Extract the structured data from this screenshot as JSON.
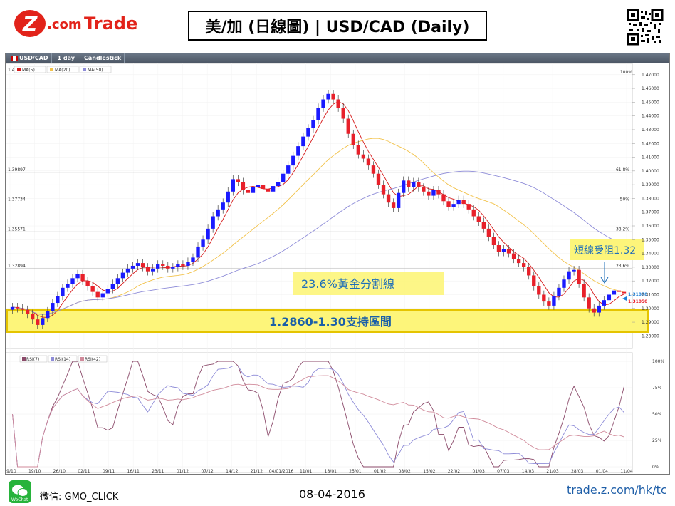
{
  "header": {
    "logo_text_z": "Z",
    "logo_text_com": ".com",
    "logo_text_trade": "Trade",
    "title": "美/加 (日線圖) | USD/CAD  (Daily)"
  },
  "toolbar": {
    "symbol": "USD/CAD",
    "period": "1 day",
    "style": "Candlestick"
  },
  "legend_price": [
    "MA(5)",
    "MA(20)",
    "MA(50)"
  ],
  "legend_price_prefix": "1.4",
  "legend_rsi": [
    "RSI(7)",
    "RSI(14)",
    "RSI(42)"
  ],
  "colors": {
    "up": "#1a1aff",
    "down": "#e8202a",
    "ma5": "#d61a1a",
    "ma20": "#f2c24a",
    "ma50": "#8e8cd8",
    "highlight_fill": "#fdf57a",
    "annotation_text": "#1f6fb8",
    "support_text": "#1a5fa8"
  },
  "fib_levels": [
    {
      "price": "1.39897",
      "pct": "61.8%"
    },
    {
      "price": "1.37734",
      "pct": "50%"
    },
    {
      "price": "1.35571",
      "pct": "38.2%"
    },
    {
      "price": "1.32894",
      "pct": "23.6%"
    }
  ],
  "fib_top_pct": "100%",
  "last_prices": {
    "upper": "1.31070",
    "lower": "1.31050"
  },
  "annotations": {
    "resistance": "短線受阻1.32",
    "fib_band": "23.6%黃金分割線",
    "support": "1.2860-1.30支持區間"
  },
  "chart_data": {
    "type": "candlestick",
    "symbol": "USD/CAD",
    "period": "1 day",
    "yaxis_ticks": [
      "1.47000",
      "1.46000",
      "1.45000",
      "1.44000",
      "1.43000",
      "1.42000",
      "1.41000",
      "1.40000",
      "1.39000",
      "1.38000",
      "1.37000",
      "1.36000",
      "1.35000",
      "1.34000",
      "1.33000",
      "1.32000",
      "1.31000",
      "1.30000",
      "1.29000",
      "1.28000"
    ],
    "ylim": [
      1.275,
      1.473
    ],
    "xaxis_ticks": [
      "09/10",
      "19/10",
      "26/10",
      "02/11",
      "09/11",
      "16/11",
      "23/11",
      "01/12",
      "07/12",
      "14/12",
      "21/12",
      "04/01/2016",
      "11/01",
      "18/01",
      "25/01",
      "01/02",
      "08/02",
      "15/02",
      "22/02",
      "01/03",
      "07/03",
      "14/03",
      "21/03",
      "28/03",
      "01/04",
      "11/04"
    ],
    "rsi_ticks": [
      "100%",
      "75%",
      "50%",
      "25%",
      "0%"
    ],
    "closes": [
      1.301,
      1.3,
      1.299,
      1.296,
      1.292,
      1.288,
      1.293,
      1.298,
      1.304,
      1.309,
      1.315,
      1.318,
      1.322,
      1.325,
      1.32,
      1.316,
      1.312,
      1.308,
      1.311,
      1.314,
      1.318,
      1.322,
      1.326,
      1.329,
      1.331,
      1.333,
      1.33,
      1.327,
      1.329,
      1.332,
      1.331,
      1.329,
      1.33,
      1.332,
      1.331,
      1.334,
      1.337,
      1.345,
      1.35,
      1.358,
      1.367,
      1.372,
      1.377,
      1.385,
      1.394,
      1.392,
      1.386,
      1.384,
      1.388,
      1.39,
      1.387,
      1.385,
      1.389,
      1.392,
      1.398,
      1.404,
      1.411,
      1.418,
      1.425,
      1.431,
      1.437,
      1.446,
      1.452,
      1.456,
      1.452,
      1.446,
      1.438,
      1.427,
      1.419,
      1.412,
      1.409,
      1.404,
      1.398,
      1.39,
      1.383,
      1.377,
      1.373,
      1.384,
      1.393,
      1.388,
      1.392,
      1.388,
      1.385,
      1.382,
      1.386,
      1.383,
      1.378,
      1.374,
      1.376,
      1.379,
      1.376,
      1.372,
      1.367,
      1.363,
      1.358,
      1.352,
      1.346,
      1.341,
      1.343,
      1.34,
      1.336,
      1.333,
      1.33,
      1.324,
      1.316,
      1.31,
      1.305,
      1.302,
      1.309,
      1.315,
      1.321,
      1.327,
      1.328,
      1.318,
      1.308,
      1.3,
      1.297,
      1.302,
      1.306,
      1.31,
      1.313,
      1.312,
      1.311
    ]
  },
  "footer": {
    "wechat_label": "WeChat",
    "wechat_id": "微信: GMO_CLICK",
    "date": "08-04-2016",
    "url": "trade.z.com/hk/tc"
  }
}
